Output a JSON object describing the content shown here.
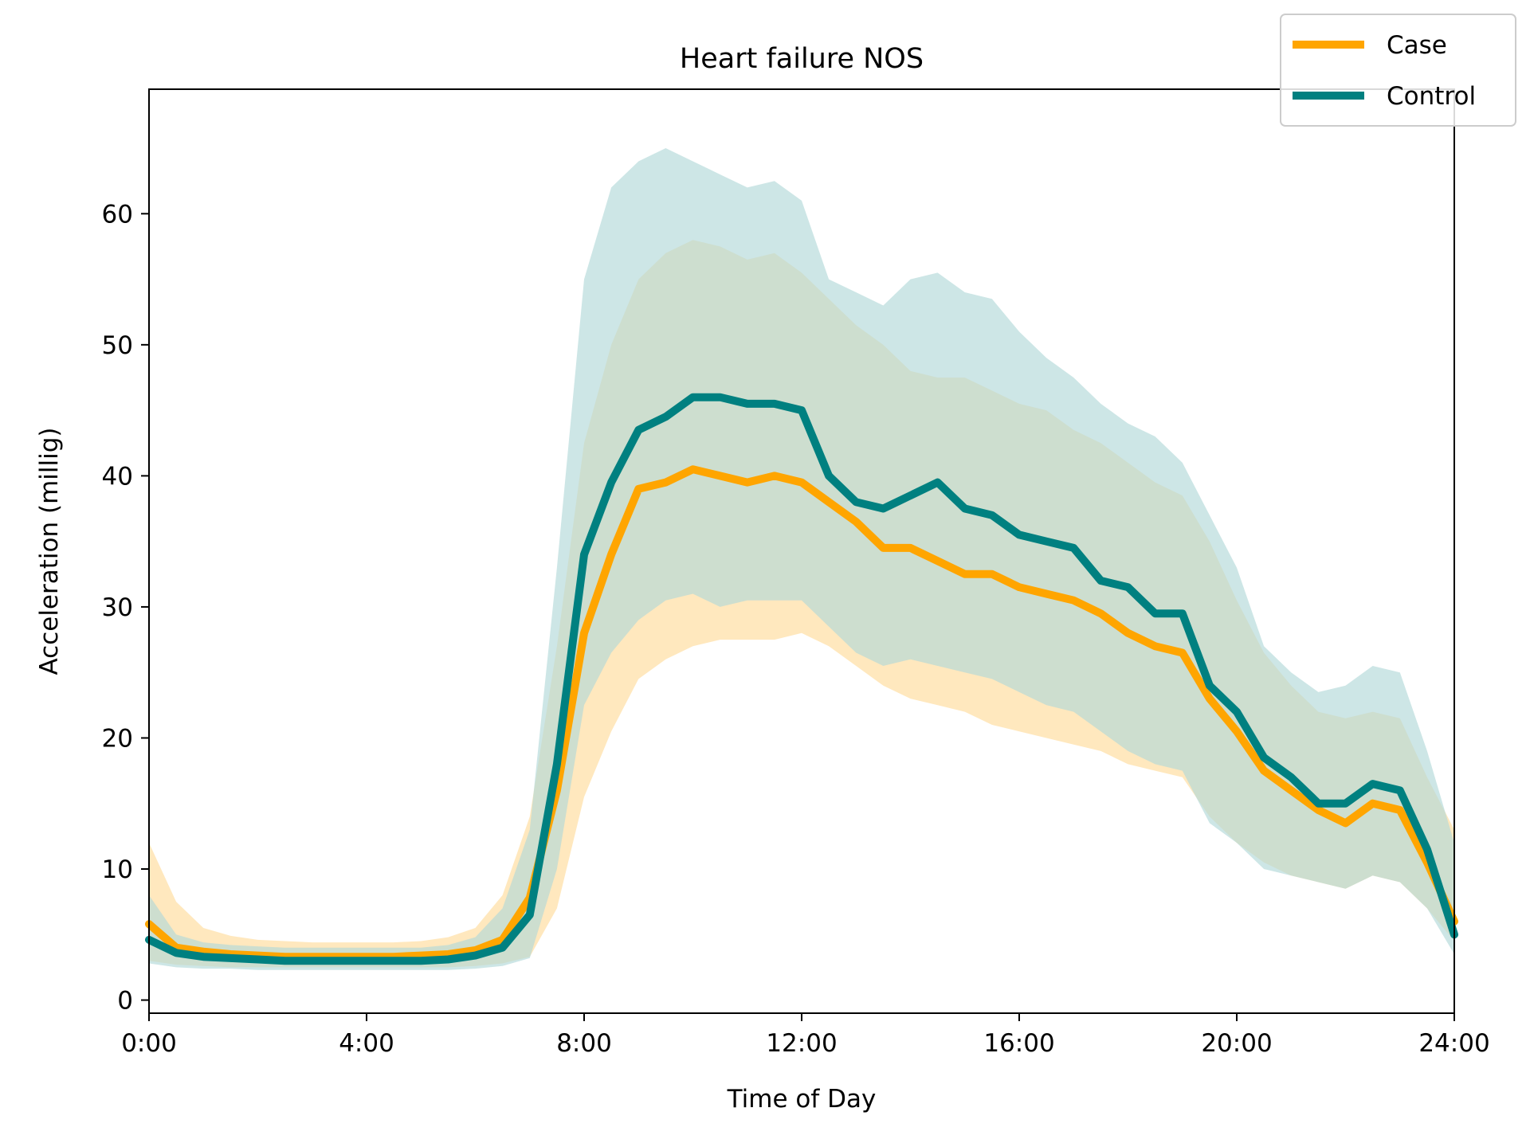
{
  "chart_data": {
    "type": "line",
    "title": "Heart failure NOS",
    "xlabel": "Time of Day",
    "ylabel": "Acceleration (millig)",
    "xlim": [
      0,
      24
    ],
    "ylim": [
      -1,
      69.5
    ],
    "x_ticks": [
      0,
      4,
      8,
      12,
      16,
      20,
      24
    ],
    "x_tick_labels": [
      "0:00",
      "4:00",
      "8:00",
      "12:00",
      "16:00",
      "20:00",
      "24:00"
    ],
    "y_ticks": [
      0,
      10,
      20,
      30,
      40,
      50,
      60
    ],
    "y_tick_labels": [
      "0",
      "10",
      "20",
      "30",
      "40",
      "50",
      "60"
    ],
    "grid": false,
    "legend_position": "top-right",
    "x": [
      0,
      0.5,
      1,
      1.5,
      2,
      2.5,
      3,
      3.5,
      4,
      4.5,
      5,
      5.5,
      6,
      6.5,
      7,
      7.5,
      8,
      8.5,
      9,
      9.5,
      10,
      10.5,
      11,
      11.5,
      12,
      12.5,
      13,
      13.5,
      14,
      14.5,
      15,
      15.5,
      16,
      16.5,
      17,
      17.5,
      18,
      18.5,
      19,
      19.5,
      20,
      20.5,
      21,
      21.5,
      22,
      22.5,
      23,
      23.5,
      24
    ],
    "series": [
      {
        "name": "Case",
        "color": "#FFA500",
        "band_color": "#FFE0A8",
        "values": [
          5.8,
          4.0,
          3.7,
          3.5,
          3.4,
          3.3,
          3.3,
          3.3,
          3.3,
          3.3,
          3.4,
          3.5,
          3.8,
          4.6,
          7.8,
          16.0,
          28.0,
          34.0,
          39.0,
          39.5,
          40.5,
          40.0,
          39.5,
          40.0,
          39.5,
          38.0,
          36.5,
          34.5,
          34.5,
          33.5,
          32.5,
          32.5,
          31.5,
          31.0,
          30.5,
          29.5,
          28.0,
          27.0,
          26.5,
          23.0,
          20.5,
          17.5,
          16.0,
          14.5,
          13.5,
          15.0,
          14.5,
          10.5,
          6.0
        ],
        "lower": [
          3.0,
          2.7,
          2.6,
          2.5,
          2.5,
          2.5,
          2.5,
          2.5,
          2.5,
          2.5,
          2.5,
          2.5,
          2.6,
          2.8,
          3.3,
          7.0,
          15.5,
          20.5,
          24.5,
          26.0,
          27.0,
          27.5,
          27.5,
          27.5,
          28.0,
          27.0,
          25.5,
          24.0,
          23.0,
          22.5,
          22.0,
          21.0,
          20.5,
          20.0,
          19.5,
          19.0,
          18.0,
          17.5,
          17.0,
          14.0,
          12.0,
          10.5,
          9.5,
          9.0,
          8.5,
          9.5,
          9.0,
          7.0,
          4.5
        ],
        "upper": [
          12.0,
          7.5,
          5.5,
          4.9,
          4.6,
          4.5,
          4.4,
          4.4,
          4.4,
          4.4,
          4.5,
          4.8,
          5.5,
          8.0,
          14.0,
          27.0,
          42.5,
          50.0,
          55.0,
          57.0,
          58.0,
          57.5,
          56.5,
          57.0,
          55.5,
          53.5,
          51.5,
          50.0,
          48.0,
          47.5,
          47.5,
          46.5,
          45.5,
          45.0,
          43.5,
          42.5,
          41.0,
          39.5,
          38.5,
          35.0,
          30.5,
          26.5,
          24.0,
          22.0,
          21.5,
          22.0,
          21.5,
          17.0,
          13.0
        ]
      },
      {
        "name": "Control",
        "color": "#008080",
        "band_color": "#B2D8D8",
        "values": [
          4.6,
          3.6,
          3.3,
          3.2,
          3.1,
          3.0,
          3.0,
          3.0,
          3.0,
          3.0,
          3.0,
          3.1,
          3.4,
          4.0,
          6.5,
          18.0,
          34.0,
          39.5,
          43.5,
          44.5,
          46.0,
          46.0,
          45.5,
          45.5,
          45.0,
          40.0,
          38.0,
          37.5,
          38.5,
          39.5,
          37.5,
          37.0,
          35.5,
          35.0,
          34.5,
          32.0,
          31.5,
          29.5,
          29.5,
          24.0,
          22.0,
          18.5,
          17.0,
          15.0,
          15.0,
          16.5,
          16.0,
          11.5,
          5.0
        ],
        "lower": [
          2.8,
          2.5,
          2.4,
          2.4,
          2.3,
          2.3,
          2.3,
          2.3,
          2.3,
          2.3,
          2.3,
          2.3,
          2.4,
          2.6,
          3.2,
          10.0,
          22.5,
          26.5,
          29.0,
          30.5,
          31.0,
          30.0,
          30.5,
          30.5,
          30.5,
          28.5,
          26.5,
          25.5,
          26.0,
          25.5,
          25.0,
          24.5,
          23.5,
          22.5,
          22.0,
          20.5,
          19.0,
          18.0,
          17.5,
          13.5,
          12.0,
          10.0,
          9.5,
          9.0,
          8.5,
          9.5,
          9.0,
          7.0,
          3.5
        ],
        "upper": [
          8.0,
          5.0,
          4.4,
          4.2,
          4.1,
          4.0,
          4.0,
          4.0,
          4.0,
          4.0,
          4.0,
          4.2,
          4.8,
          7.0,
          13.0,
          33.0,
          55.0,
          62.0,
          64.0,
          65.0,
          64.0,
          63.0,
          62.0,
          62.5,
          61.0,
          55.0,
          54.0,
          53.0,
          55.0,
          55.5,
          54.0,
          53.5,
          51.0,
          49.0,
          47.5,
          45.5,
          44.0,
          43.0,
          41.0,
          37.0,
          33.0,
          27.0,
          25.0,
          23.5,
          24.0,
          25.5,
          25.0,
          19.0,
          12.0
        ]
      }
    ]
  }
}
